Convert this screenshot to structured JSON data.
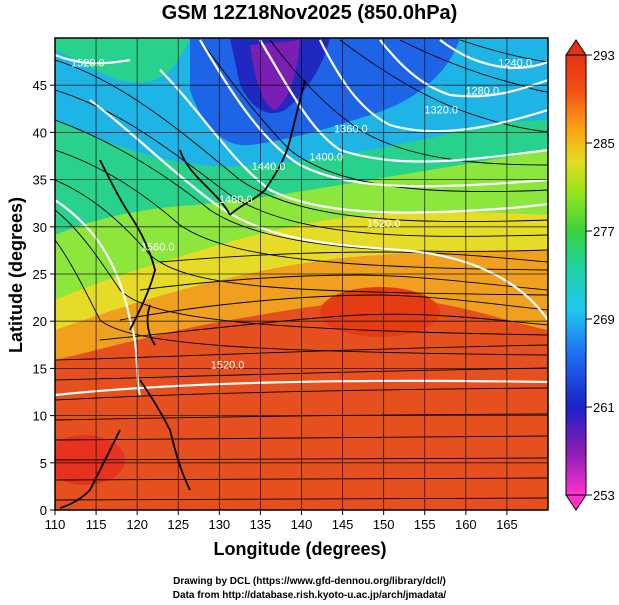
{
  "title": "GSM 12Z18Nov2025 (850.0hPa)",
  "map": {
    "xlabel": "Longitude (degrees)",
    "ylabel": "Latitude  (degrees)",
    "x_ticks": [
      110,
      115,
      120,
      125,
      130,
      135,
      140,
      145,
      150,
      155,
      160,
      165
    ],
    "y_ticks": [
      0,
      5,
      10,
      15,
      20,
      25,
      30,
      35,
      40,
      45
    ],
    "xlim": [
      110,
      170
    ],
    "ylim": [
      0,
      50
    ],
    "field": "temperature shading (K) with streamlines and white height contours",
    "contour_labels": [
      {
        "text": "1520.0",
        "lon": 131,
        "lat": 15
      },
      {
        "text": "1560.0",
        "lon": 122.5,
        "lat": 27.5
      },
      {
        "text": "1480.0",
        "lon": 132,
        "lat": 32.5
      },
      {
        "text": "1440.0",
        "lon": 136,
        "lat": 36
      },
      {
        "text": "1400.0",
        "lon": 143,
        "lat": 37
      },
      {
        "text": "1360.0",
        "lon": 146,
        "lat": 40
      },
      {
        "text": "1320.0",
        "lon": 157,
        "lat": 42
      },
      {
        "text": "1280.0",
        "lon": 162,
        "lat": 44
      },
      {
        "text": "1240.0",
        "lon": 166,
        "lat": 47
      },
      {
        "text": "1520.0",
        "lon": 114,
        "lat": 47
      },
      {
        "text": "1520.0",
        "lon": 150,
        "lat": 30
      }
    ]
  },
  "colorbar": {
    "ticks": [
      253,
      261,
      269,
      277,
      285,
      293
    ],
    "colors": [
      "#ff33cc",
      "#8a1cb5",
      "#1a22c8",
      "#1e6ef0",
      "#1ec8f0",
      "#20d2a0",
      "#3cd23c",
      "#8ce61e",
      "#e6dc1e",
      "#ff9a14",
      "#f05014",
      "#e63214"
    ]
  },
  "credits": {
    "line1": "Drawing by DCL (https://www.gfd-dennou.org/library/dcl/)",
    "line2": "Data from http://database.rish.kyoto-u.ac.jp/arch/jmadata/"
  }
}
